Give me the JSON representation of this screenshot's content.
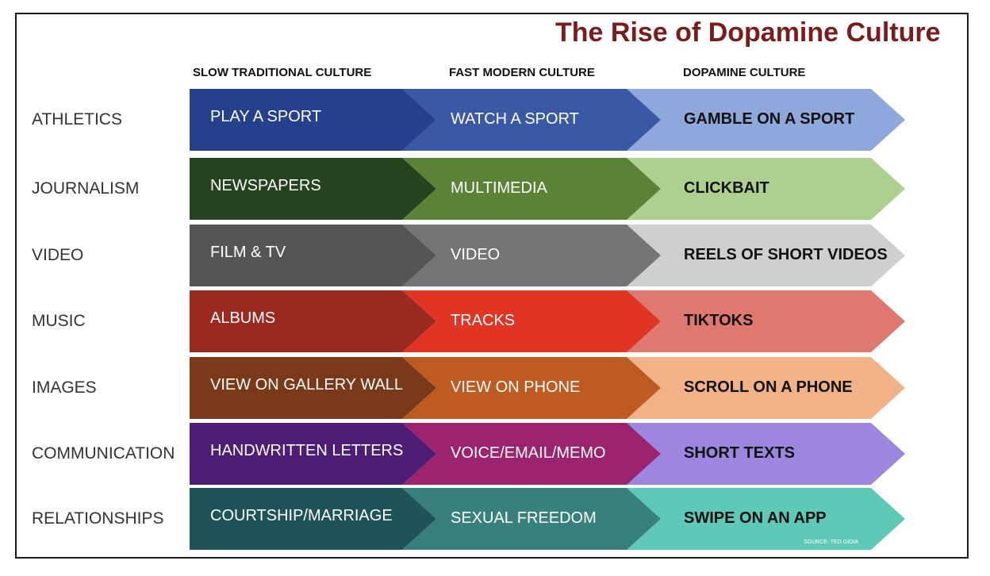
{
  "title": "The Rise of Dopamine Culture",
  "columns": [
    "SLOW TRADITIONAL CULTURE",
    "FAST MODERN CULTURE",
    "DOPAMINE CULTURE"
  ],
  "rows": [
    {
      "label": "ATHLETICS",
      "cells": [
        "PLAY A SPORT",
        "WATCH A SPORT",
        "GAMBLE ON A SPORT"
      ],
      "colors": [
        "#26408b",
        "#3a58a3",
        "#8fa8dc"
      ]
    },
    {
      "label": "JOURNALISM",
      "cells": [
        "NEWSPAPERS",
        "MULTIMEDIA",
        "CLICKBAIT"
      ],
      "colors": [
        "#25431e",
        "#5a8338",
        "#aed08f"
      ]
    },
    {
      "label": "VIDEO",
      "cells": [
        "FILM &  TV",
        "VIDEO",
        "REELS OF SHORT VIDEOS"
      ],
      "colors": [
        "#555555",
        "#777574",
        "#cfcfcf"
      ]
    },
    {
      "label": "MUSIC",
      "cells": [
        "ALBUMS",
        "TRACKS",
        "TIKTOKS"
      ],
      "colors": [
        "#9a2a20",
        "#e03425",
        "#df7970"
      ]
    },
    {
      "label": "IMAGES",
      "cells": [
        "VIEW ON GALLERY WALL",
        "VIEW ON PHONE",
        "SCROLL ON A PHONE"
      ],
      "colors": [
        "#7a3a19",
        "#bd5b22",
        "#f1b287"
      ]
    },
    {
      "label": "COMMUNICATION",
      "cells": [
        "HANDWRITTEN LETTERS",
        "VOICE/EMAIL/MEMO",
        "SHORT TEXTS"
      ],
      "colors": [
        "#4e1d74",
        "#9c246e",
        "#9c86e0"
      ]
    },
    {
      "label": "RELATIONSHIPS",
      "cells": [
        "COURTSHIP/MARRIAGE",
        "SEXUAL FREEDOM",
        "SWIPE ON AN APP"
      ],
      "colors": [
        "#1f5358",
        "#37807b",
        "#5ec9b6"
      ]
    }
  ],
  "source": "SOURCE: TED GIOIA"
}
